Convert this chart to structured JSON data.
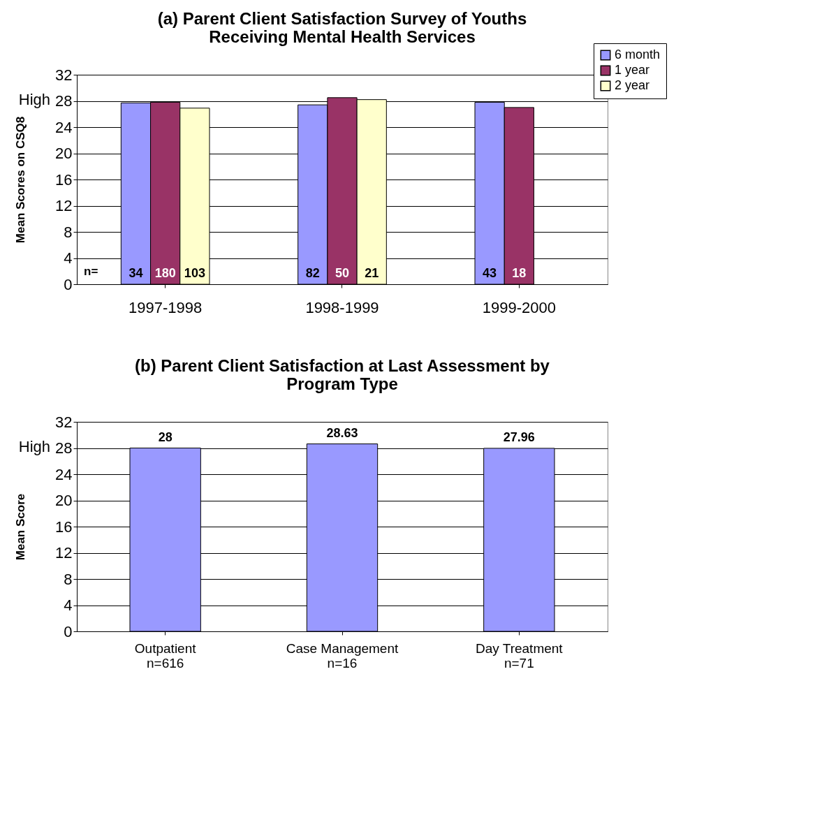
{
  "chart_data": [
    {
      "type": "bar",
      "title": "(a) Parent Client Satisfaction Survey of Youths Receiving Mental Health Services",
      "ylabel": "Mean Scores on CSQ8",
      "categories": [
        "1997-1998",
        "1998-1999",
        "1999-2000"
      ],
      "series": [
        {
          "name": "6 month",
          "color": "#9999ff",
          "values": [
            27.7,
            27.4,
            27.8
          ]
        },
        {
          "name": "1 year",
          "color": "#993366",
          "values": [
            27.8,
            28.5,
            27.0
          ]
        },
        {
          "name": "2 year",
          "color": "#ffffcc",
          "values": [
            26.9,
            28.2,
            null
          ]
        }
      ],
      "ylim": [
        0,
        32
      ],
      "yticks": [
        0,
        4,
        8,
        12,
        16,
        20,
        24,
        28,
        32
      ],
      "grid": "y",
      "legend": "top right",
      "annotations": [
        "High",
        "n=",
        "34",
        "82",
        "43",
        "180",
        "50",
        "18",
        "103",
        "21"
      ]
    },
    {
      "type": "bar",
      "title": "(b) Parent Client Satisfaction at Last Assessment by Program Type",
      "ylabel": "Mean Score",
      "categories": [
        "Outpatient\nn=616",
        "Case Management\nn=16",
        "Day Treatment\nn=71"
      ],
      "values": [
        28,
        28.63,
        27.96
      ],
      "color": "#9999ff",
      "data_labels": true,
      "ylim": [
        0,
        32
      ],
      "yticks": [
        0,
        4,
        8,
        12,
        16,
        20,
        24,
        28,
        32
      ],
      "grid": "y",
      "annotations": [
        "High"
      ]
    }
  ]
}
